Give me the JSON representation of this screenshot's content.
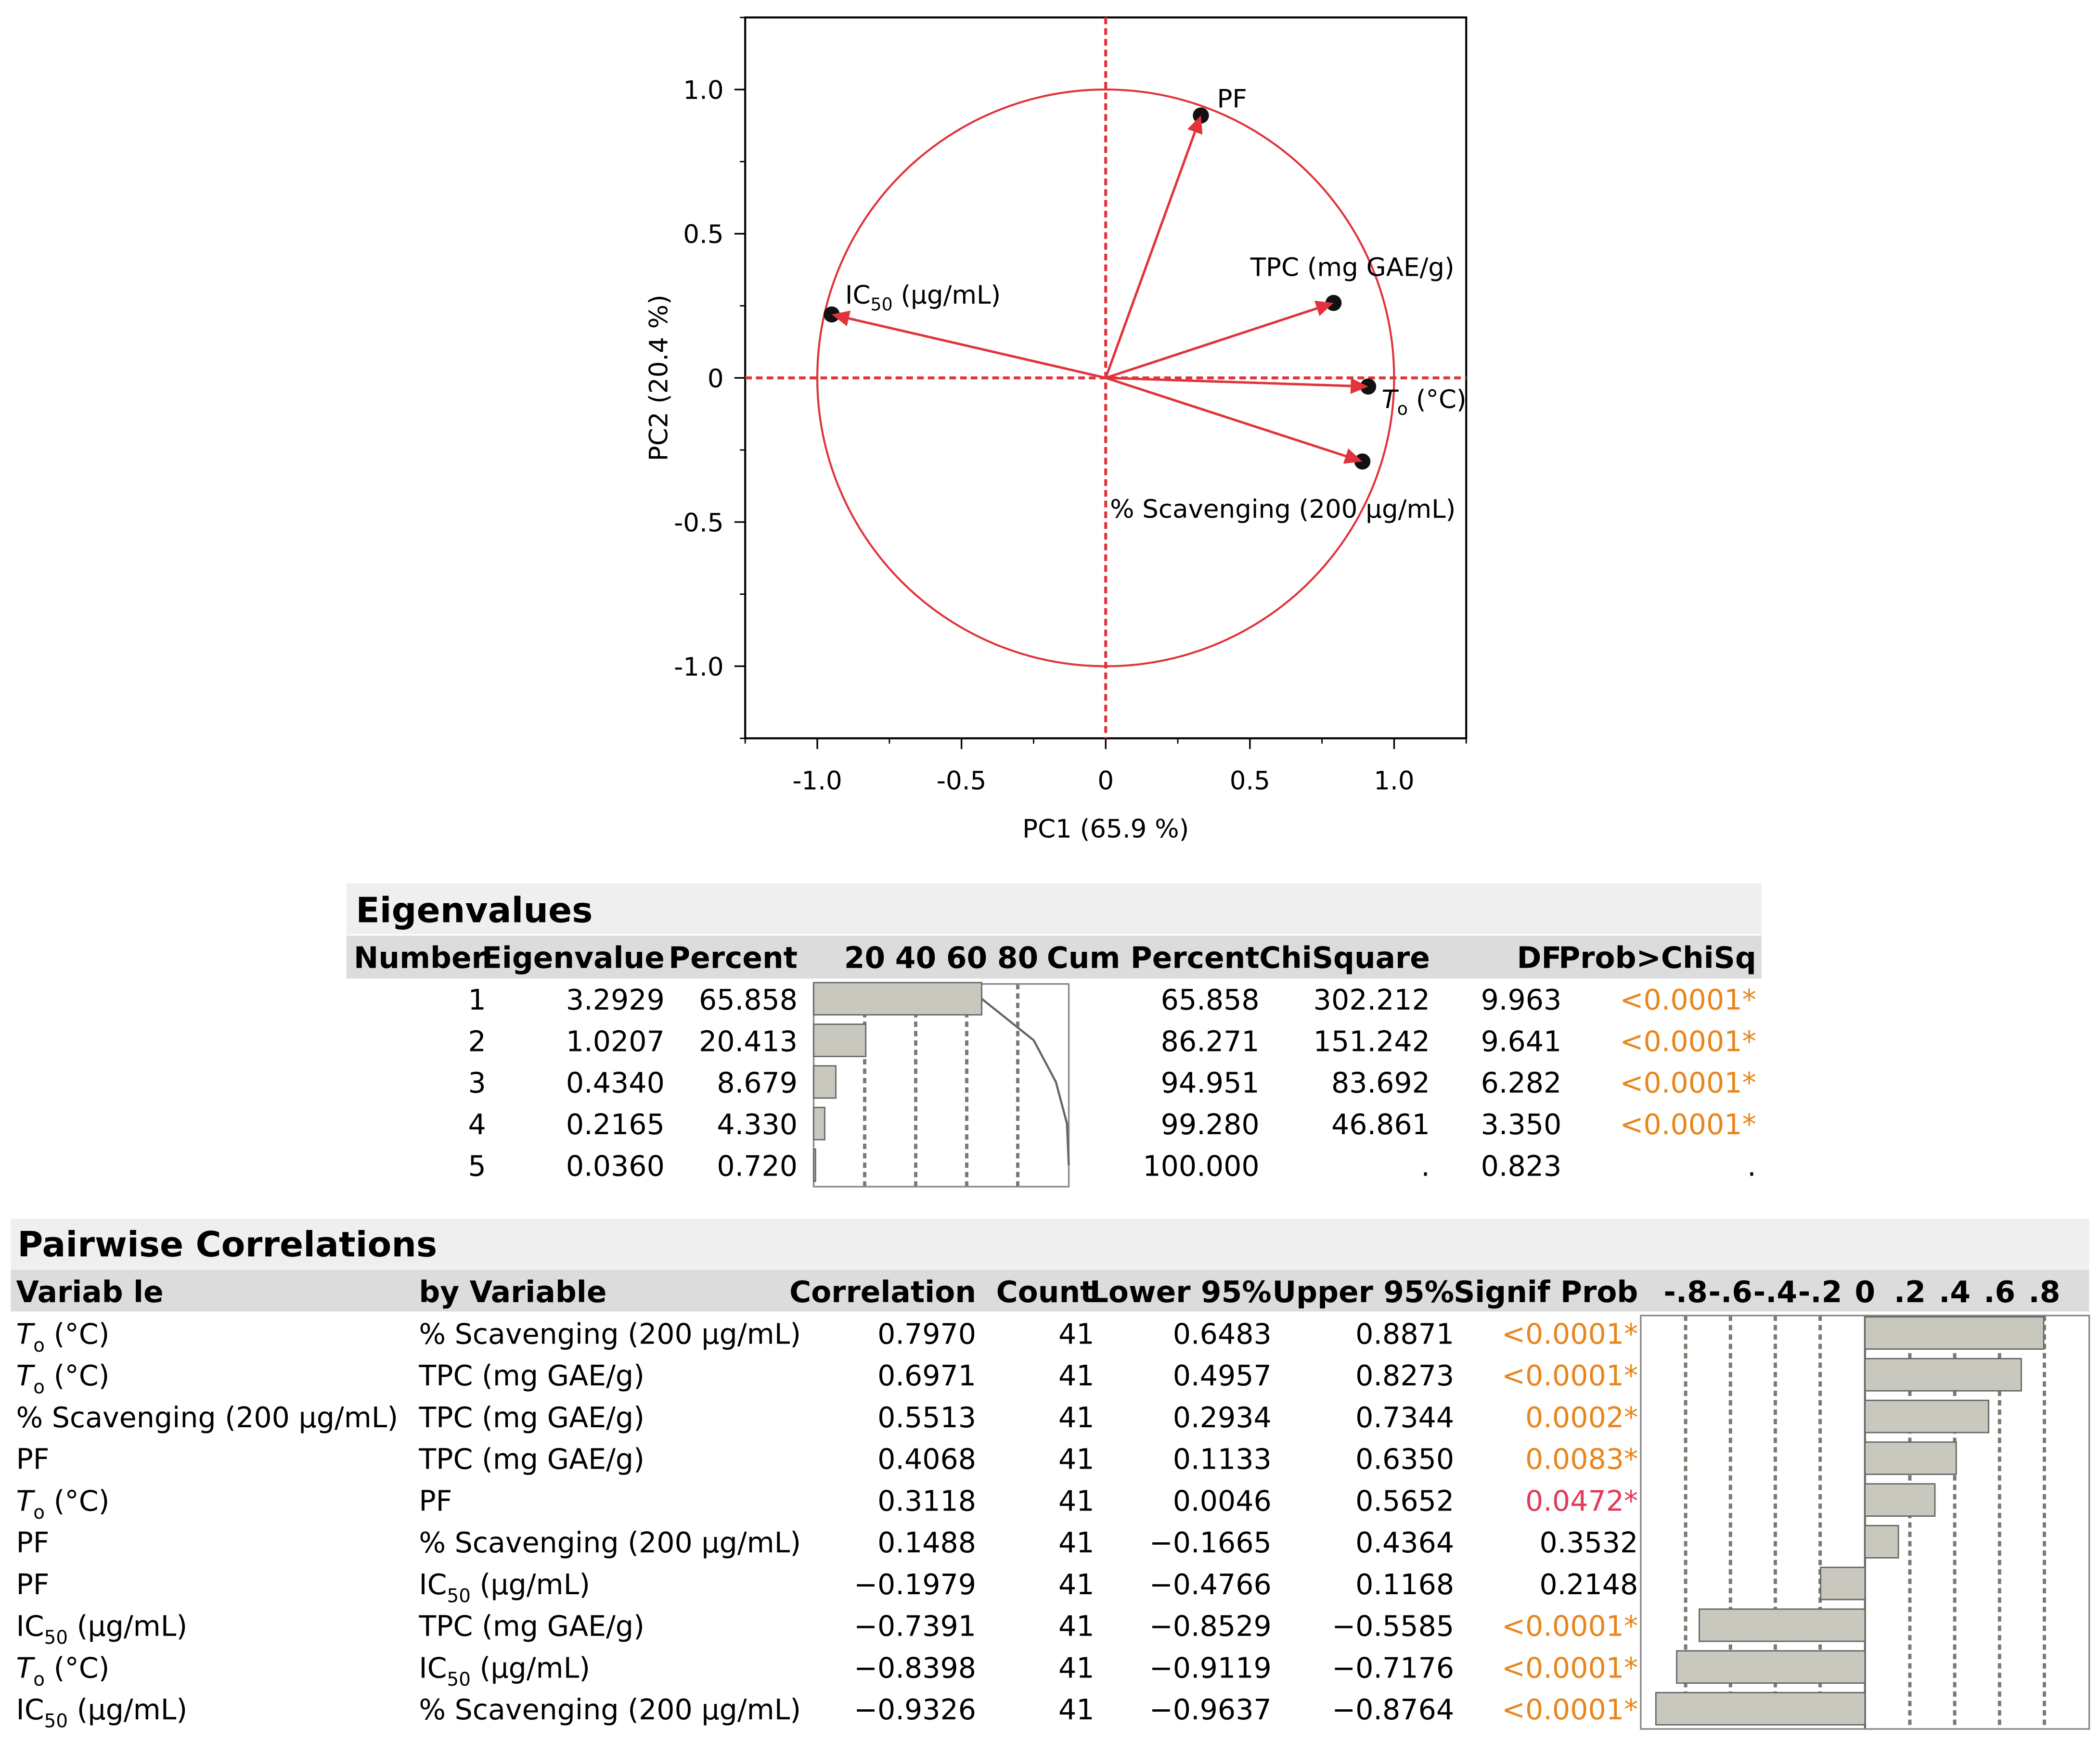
{
  "chart_data": [
    {
      "type": "scatter",
      "subtype": "pca-loading-plot",
      "xlabel": "PC1  (65.9 %)",
      "ylabel": "PC2  (20.4 %)",
      "xlim": [
        -1.25,
        1.25
      ],
      "ylim": [
        -1.25,
        1.25
      ],
      "xticks": [
        -1.0,
        -0.5,
        0,
        0.5,
        1.0
      ],
      "xtick_labels": [
        "-1.0",
        "-0.5",
        "0",
        "0.5",
        "1.0"
      ],
      "yticks": [
        -1.0,
        -0.5,
        0,
        0.5,
        1.0
      ],
      "ytick_labels": [
        "-1.0",
        "-0.5",
        "0",
        "0.5",
        "1.0"
      ],
      "unit_circle": true,
      "colors": {
        "circle": "#e0333b",
        "arrows": "#e0333b",
        "axes_dashed": "#e0333b",
        "points": "#111111"
      },
      "points": [
        {
          "label": "PF",
          "x": 0.33,
          "y": 0.91
        },
        {
          "label": "TPC (mg GAE/g)",
          "x": 0.79,
          "y": 0.26
        },
        {
          "label_main": "IC",
          "label_sub": "50",
          "label_rest": " (µg/mL)",
          "x": -0.95,
          "y": 0.22
        },
        {
          "label_main": "T",
          "label_sub": "o",
          "label_rest": " (°C)",
          "x": 0.91,
          "y": -0.03
        },
        {
          "label": "% Scavenging (200 µg/mL)",
          "x": 0.89,
          "y": -0.29
        }
      ]
    },
    {
      "type": "table",
      "title": "Eigenvalues",
      "headers": [
        "Number",
        "Eigenvalue",
        "Percent",
        "",
        "Cum Percent",
        "ChiSquare",
        "DF",
        "Prob>ChiSq"
      ],
      "bar_axis_ticks": [
        "20",
        "40",
        "60",
        "80"
      ],
      "bar_axis_values": [
        20,
        40,
        60,
        80
      ],
      "rows": [
        {
          "number": "1",
          "eigenvalue": "3.2929",
          "percent": "65.858",
          "percent_value": 65.858,
          "cum_percent": "65.858",
          "cum_value": 65.858,
          "chisquare": "302.212",
          "df": "9.963",
          "prob": "<0.0001*",
          "prob_color": "#e8861c"
        },
        {
          "number": "2",
          "eigenvalue": "1.0207",
          "percent": "20.413",
          "percent_value": 20.413,
          "cum_percent": "86.271",
          "cum_value": 86.271,
          "chisquare": "151.242",
          "df": "9.641",
          "prob": "<0.0001*",
          "prob_color": "#e8861c"
        },
        {
          "number": "3",
          "eigenvalue": "0.4340",
          "percent": "8.679",
          "percent_value": 8.679,
          "cum_percent": "94.951",
          "cum_value": 94.951,
          "chisquare": "83.692",
          "df": "6.282",
          "prob": "<0.0001*",
          "prob_color": "#e8861c"
        },
        {
          "number": "4",
          "eigenvalue": "0.2165",
          "percent": "4.330",
          "percent_value": 4.33,
          "cum_percent": "99.280",
          "cum_value": 99.28,
          "chisquare": "46.861",
          "df": "3.350",
          "prob": "<0.0001*",
          "prob_color": "#e8861c"
        },
        {
          "number": "5",
          "eigenvalue": "0.0360",
          "percent": "0.720",
          "percent_value": 0.72,
          "cum_percent": "100.000",
          "cum_value": 100.0,
          "chisquare": ".",
          "df": "0.823",
          "prob": ".",
          "prob_color": "#000000"
        }
      ]
    },
    {
      "type": "table",
      "title": "Pairwise Correlations",
      "headers": [
        "Variab le",
        "by Variable",
        "Correlation",
        "Count",
        "Lower 95%",
        "Upper 95%",
        "Signif Prob"
      ],
      "bar_axis_ticks": [
        "-.8",
        "-.6",
        "-.4",
        "-.2",
        "0",
        ".2",
        ".4",
        ".6",
        ".8"
      ],
      "bar_axis_values": [
        -0.8,
        -0.6,
        -0.4,
        -0.2,
        0,
        0.2,
        0.4,
        0.6,
        0.8
      ],
      "rows": [
        {
          "var_main": "T",
          "var_sub": "o",
          "var_rest": " (°C)",
          "var_italic": true,
          "by_main": "% Scavenging (200 µg/mL)",
          "by_sub": "",
          "by_rest": "",
          "corr": "0.7970",
          "corr_value": 0.797,
          "count": "41",
          "lower": "0.6483",
          "upper": "0.8871",
          "prob": "<0.0001*",
          "prob_color": "#e8861c"
        },
        {
          "var_main": "T",
          "var_sub": "o",
          "var_rest": " (°C)",
          "var_italic": true,
          "by_main": "TPC (mg GAE/g)",
          "by_sub": "",
          "by_rest": "",
          "corr": "0.6971",
          "corr_value": 0.6971,
          "count": "41",
          "lower": "0.4957",
          "upper": "0.8273",
          "prob": "<0.0001*",
          "prob_color": "#e8861c"
        },
        {
          "var_main": "% Scavenging (200 µg/mL)",
          "var_sub": "",
          "var_rest": "",
          "var_italic": false,
          "by_main": "TPC (mg GAE/g)",
          "by_sub": "",
          "by_rest": "",
          "corr": "0.5513",
          "corr_value": 0.5513,
          "count": "41",
          "lower": "0.2934",
          "upper": "0.7344",
          "prob": "0.0002*",
          "prob_color": "#e8861c"
        },
        {
          "var_main": "PF",
          "var_sub": "",
          "var_rest": "",
          "var_italic": false,
          "by_main": "TPC (mg GAE/g)",
          "by_sub": "",
          "by_rest": "",
          "corr": "0.4068",
          "corr_value": 0.4068,
          "count": "41",
          "lower": "0.1133",
          "upper": "0.6350",
          "prob": "0.0083*",
          "prob_color": "#e8861c"
        },
        {
          "var_main": "T",
          "var_sub": "o",
          "var_rest": " (°C)",
          "var_italic": true,
          "by_main": "PF",
          "by_sub": "",
          "by_rest": "",
          "corr": "0.3118",
          "corr_value": 0.3118,
          "count": "41",
          "lower": "0.0046",
          "upper": "0.5652",
          "prob": "0.0472*",
          "prob_color": "#e23a5a"
        },
        {
          "var_main": "PF",
          "var_sub": "",
          "var_rest": "",
          "var_italic": false,
          "by_main": "% Scavenging (200 µg/mL)",
          "by_sub": "",
          "by_rest": "",
          "corr": "0.1488",
          "corr_value": 0.1488,
          "count": "41",
          "lower": "−0.1665",
          "upper": "0.4364",
          "prob": "0.3532",
          "prob_color": "#000000"
        },
        {
          "var_main": "PF",
          "var_sub": "",
          "var_rest": "",
          "var_italic": false,
          "by_main": "IC",
          "by_sub": "50",
          "by_rest": " (µg/mL)",
          "corr": "−0.1979",
          "corr_value": -0.1979,
          "count": "41",
          "lower": "−0.4766",
          "upper": "0.1168",
          "prob": "0.2148",
          "prob_color": "#000000"
        },
        {
          "var_main": "IC",
          "var_sub": "50",
          "var_rest": " (µg/mL)",
          "var_italic": false,
          "by_main": "TPC (mg GAE/g)",
          "by_sub": "",
          "by_rest": "",
          "corr": "−0.7391",
          "corr_value": -0.7391,
          "count": "41",
          "lower": "−0.8529",
          "upper": "−0.5585",
          "prob": "<0.0001*",
          "prob_color": "#e8861c"
        },
        {
          "var_main": "T",
          "var_sub": "o",
          "var_rest": " (°C)",
          "var_italic": true,
          "by_main": "IC",
          "by_sub": "50",
          "by_rest": " (µg/mL)",
          "corr": "−0.8398",
          "corr_value": -0.8398,
          "count": "41",
          "lower": "−0.9119",
          "upper": "−0.7176",
          "prob": "<0.0001*",
          "prob_color": "#e8861c"
        },
        {
          "var_main": "IC",
          "var_sub": "50",
          "var_rest": " (µg/mL)",
          "var_italic": false,
          "by_main": "% Scavenging (200 µg/mL)",
          "by_sub": "",
          "by_rest": "",
          "corr": "−0.9326",
          "corr_value": -0.9326,
          "count": "41",
          "lower": "−0.9637",
          "upper": "−0.8764",
          "prob": "<0.0001*",
          "prob_color": "#e8861c"
        }
      ]
    }
  ]
}
